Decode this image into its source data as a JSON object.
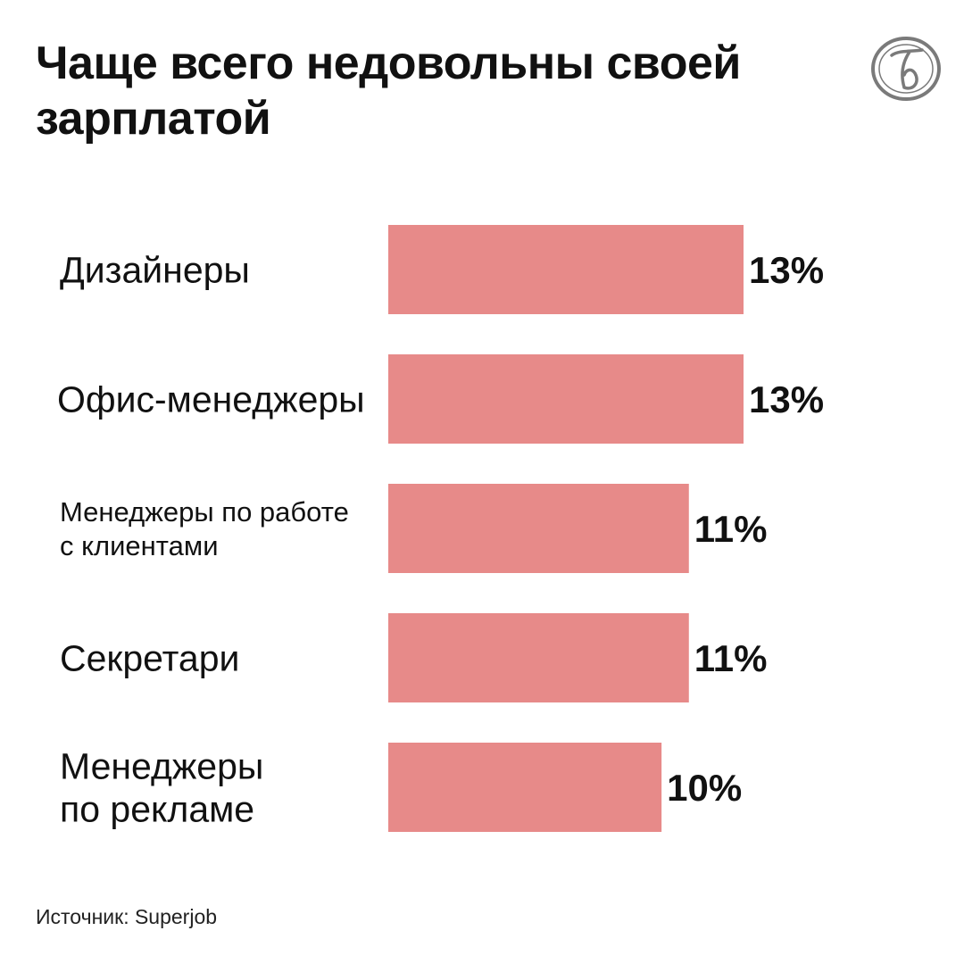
{
  "colors": {
    "bar": "#e78a89",
    "text": "#111111",
    "logo": "#7a7a7a"
  },
  "header": {
    "title": "Чаще всего недовольны своей зарплатой"
  },
  "logo": {
    "icon": "newspaper-monogram-logo"
  },
  "footer": {
    "source": "Источник: Superjob"
  },
  "chart_data": {
    "type": "bar",
    "orientation": "horizontal",
    "unit": "%",
    "xlim": [
      0,
      13
    ],
    "categories": [
      [
        "Дизайнеры"
      ],
      [
        "Офис-менеджеры"
      ],
      [
        "Менеджеры по работе",
        "с клиентами"
      ],
      [
        "Секретари"
      ],
      [
        "Менеджеры",
        "по рекламе"
      ]
    ],
    "values": [
      13,
      13,
      11,
      11,
      10
    ],
    "value_labels": [
      "13%",
      "13%",
      "11%",
      "11%",
      "10%"
    ],
    "grid": false,
    "legend": "none"
  }
}
